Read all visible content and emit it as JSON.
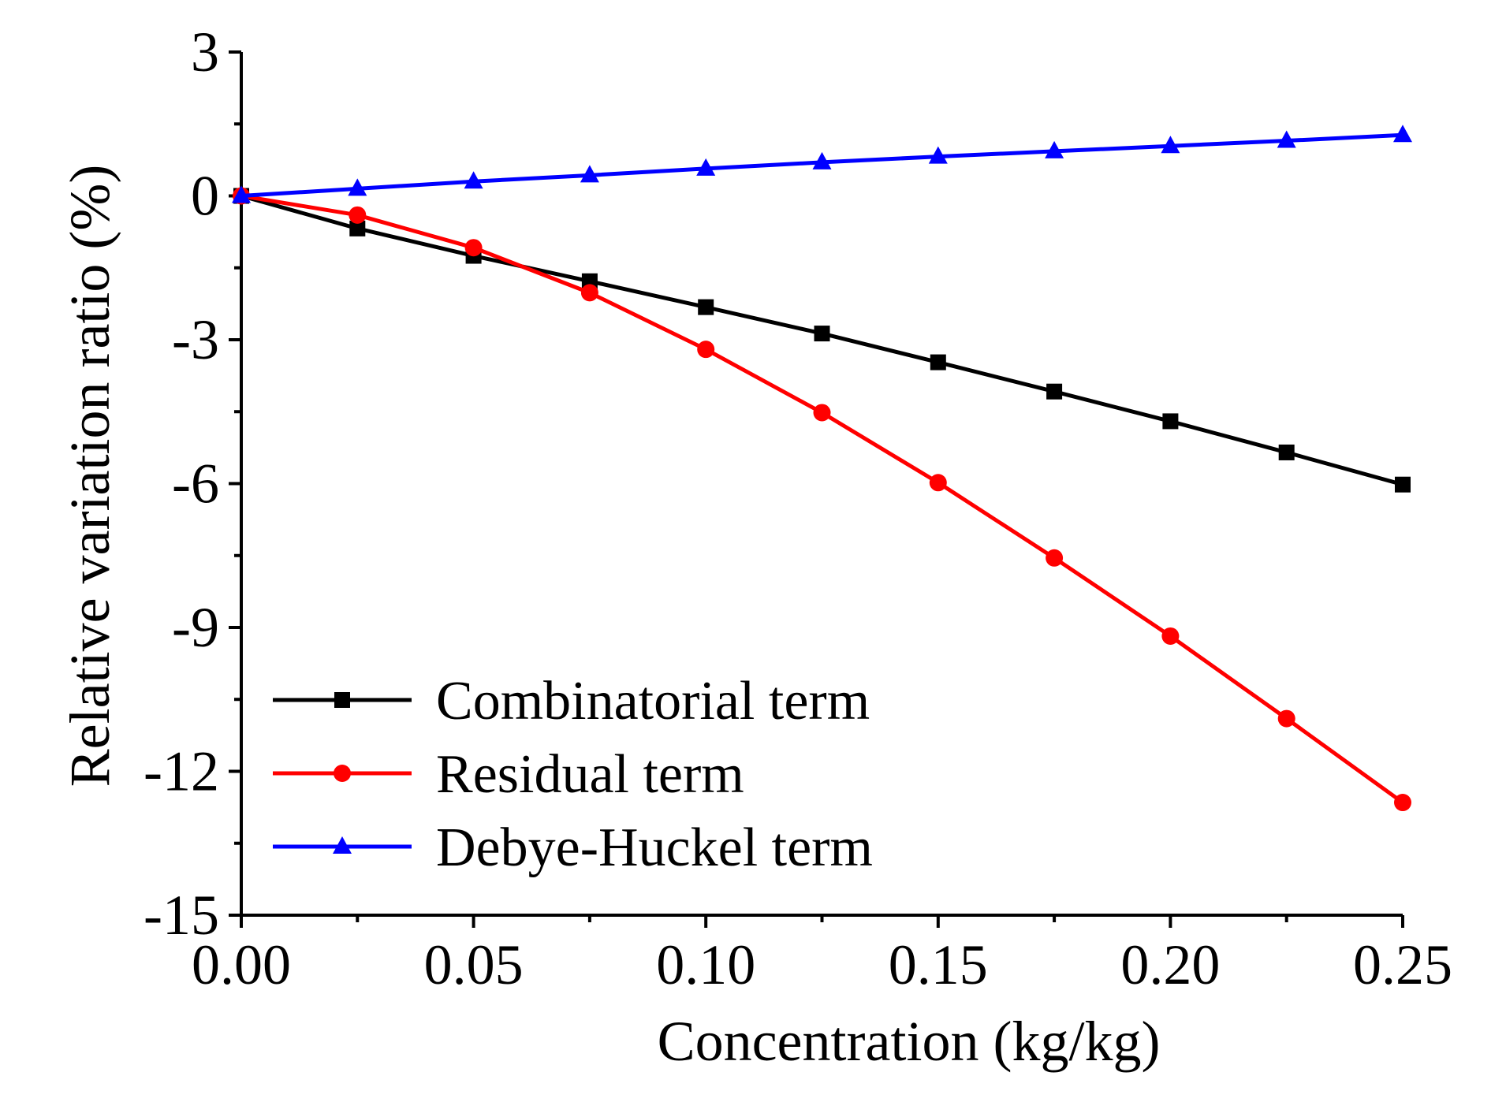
{
  "chart_data": {
    "type": "line",
    "title": "",
    "xlabel": "Concentration (kg/kg)",
    "ylabel": "Relative variation ratio (%)",
    "xlim": [
      0,
      0.25
    ],
    "ylim": [
      -15,
      3
    ],
    "x_ticks": [
      0,
      0.05,
      0.1,
      0.15,
      0.2,
      0.25
    ],
    "x_tick_labels": [
      "0.00",
      "0.05",
      "0.10",
      "0.15",
      "0.20",
      "0.25"
    ],
    "x_minor_step": 0.025,
    "y_ticks": [
      3,
      0,
      -3,
      -6,
      -9,
      -12,
      -15
    ],
    "y_tick_labels": [
      "3",
      "0",
      "-3",
      "-6",
      "-9",
      "-12",
      "-15"
    ],
    "y_minor_step": 1.5,
    "grid": false,
    "legend_position": "bottom-left",
    "x": [
      0,
      0.025,
      0.05,
      0.075,
      0.1,
      0.125,
      0.15,
      0.175,
      0.2,
      0.225,
      0.25
    ],
    "series": [
      {
        "name": "Combinatorial term",
        "color": "#000000",
        "marker": "square",
        "values": [
          0,
          -0.68,
          -1.25,
          -1.78,
          -2.32,
          -2.87,
          -3.47,
          -4.08,
          -4.7,
          -5.35,
          -6.02
        ]
      },
      {
        "name": "Residual term",
        "color": "#ff0000",
        "marker": "circle",
        "values": [
          0,
          -0.4,
          -1.08,
          -2.02,
          -3.2,
          -4.52,
          -5.98,
          -7.55,
          -9.18,
          -10.9,
          -12.65
        ]
      },
      {
        "name": "Debye-Huckel term",
        "color": "#0000ff",
        "marker": "triangle",
        "values": [
          0,
          0.15,
          0.3,
          0.43,
          0.57,
          0.7,
          0.82,
          0.93,
          1.04,
          1.15,
          1.27
        ]
      }
    ]
  }
}
